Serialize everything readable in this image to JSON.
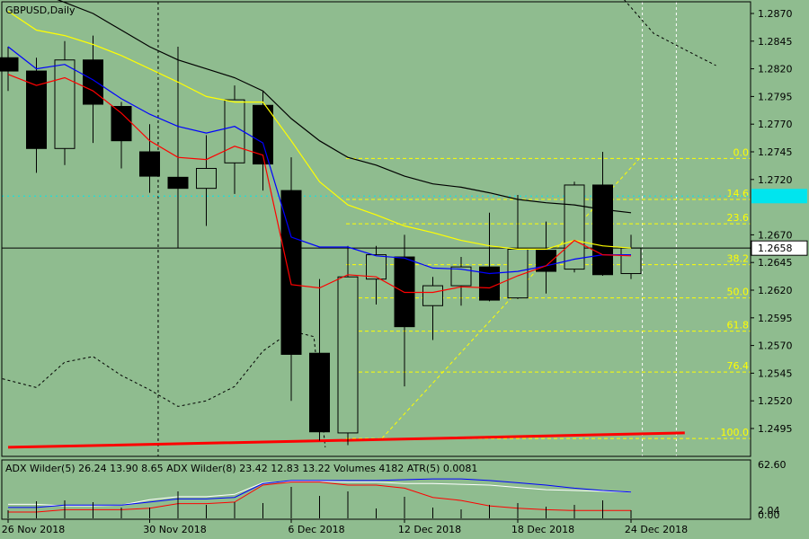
{
  "colors": {
    "background": "#8fbc8f",
    "axis": "#000000",
    "fib": "#ffff00",
    "ma_black": "#000000",
    "ma_yellow": "#ffff00",
    "ma_blue": "#0000ff",
    "ma_red": "#ff0000",
    "price_badge": "#ffffff",
    "cyan_badge": "#00e5ee"
  },
  "chart_data": [
    {
      "type": "candlestick",
      "title": "GBPUSD,Daily",
      "ylim": [
        1.2475,
        1.2885
      ],
      "y_ticks": [
        "1.2870",
        "1.2845",
        "1.2820",
        "1.2795",
        "1.2770",
        "1.2745",
        "1.2720",
        "1.2670",
        "1.2645",
        "1.2620",
        "1.2595",
        "1.2570",
        "1.2545",
        "1.2520",
        "1.2495"
      ],
      "x_labels": [
        {
          "i": 0,
          "label": "26 Nov 2018"
        },
        {
          "i": 5,
          "label": "30 Nov 2018"
        },
        {
          "i": 10,
          "label": "6 Dec 2018"
        },
        {
          "i": 14,
          "label": "12 Dec 2018"
        },
        {
          "i": 18,
          "label": "18 Dec 2018"
        },
        {
          "i": 22,
          "label": "24 Dec 2018"
        }
      ],
      "current_price": "1.2658",
      "cyan_level": 1.2705,
      "candles": [
        {
          "o": 1.283,
          "h": 1.284,
          "l": 1.28,
          "c": 1.2818
        },
        {
          "o": 1.2818,
          "h": 1.283,
          "l": 1.2726,
          "c": 1.2748
        },
        {
          "o": 1.2748,
          "h": 1.2845,
          "l": 1.2733,
          "c": 1.2828
        },
        {
          "o": 1.2828,
          "h": 1.285,
          "l": 1.2753,
          "c": 1.2788
        },
        {
          "o": 1.2786,
          "h": 1.279,
          "l": 1.273,
          "c": 1.2755
        },
        {
          "o": 1.2745,
          "h": 1.277,
          "l": 1.2708,
          "c": 1.2723
        },
        {
          "o": 1.2722,
          "h": 1.284,
          "l": 1.2658,
          "c": 1.2712
        },
        {
          "o": 1.2712,
          "h": 1.276,
          "l": 1.2678,
          "c": 1.273
        },
        {
          "o": 1.2735,
          "h": 1.2805,
          "l": 1.2707,
          "c": 1.2792
        },
        {
          "o": 1.2787,
          "h": 1.28,
          "l": 1.271,
          "c": 1.2734
        },
        {
          "o": 1.271,
          "h": 1.274,
          "l": 1.252,
          "c": 1.2562
        },
        {
          "o": 1.2563,
          "h": 1.263,
          "l": 1.2484,
          "c": 1.2492
        },
        {
          "o": 1.2491,
          "h": 1.266,
          "l": 1.248,
          "c": 1.2632
        },
        {
          "o": 1.263,
          "h": 1.266,
          "l": 1.2607,
          "c": 1.2652
        },
        {
          "o": 1.265,
          "h": 1.267,
          "l": 1.2533,
          "c": 1.2587
        },
        {
          "o": 1.2606,
          "h": 1.2632,
          "l": 1.2575,
          "c": 1.2624
        },
        {
          "o": 1.2624,
          "h": 1.265,
          "l": 1.2606,
          "c": 1.2641
        },
        {
          "o": 1.2641,
          "h": 1.269,
          "l": 1.261,
          "c": 1.2611
        },
        {
          "o": 1.2613,
          "h": 1.2706,
          "l": 1.2612,
          "c": 1.2657
        },
        {
          "o": 1.2656,
          "h": 1.2682,
          "l": 1.2617,
          "c": 1.2637
        },
        {
          "o": 1.2639,
          "h": 1.2718,
          "l": 1.2636,
          "c": 1.2715
        },
        {
          "o": 1.2715,
          "h": 1.2745,
          "l": 1.2633,
          "c": 1.2634
        },
        {
          "o": 1.2635,
          "h": 1.267,
          "l": 1.263,
          "c": 1.2658
        }
      ],
      "moving_averages": [
        {
          "color": "black",
          "values": [
            1.29,
            1.289,
            1.288,
            1.287,
            1.2855,
            1.284,
            1.2828,
            1.282,
            1.2812,
            1.28,
            1.2775,
            1.2755,
            1.274,
            1.2733,
            1.2723,
            1.2716,
            1.2713,
            1.2708,
            1.2702,
            1.2699,
            1.2697,
            1.2693,
            1.269
          ]
        },
        {
          "color": "yellow",
          "values": [
            1.2872,
            1.2855,
            1.285,
            1.2842,
            1.2832,
            1.282,
            1.2808,
            1.2795,
            1.279,
            1.279,
            1.2755,
            1.2718,
            1.2697,
            1.2688,
            1.2678,
            1.2672,
            1.2665,
            1.266,
            1.2657,
            1.2657,
            1.2665,
            1.266,
            1.2658
          ]
        },
        {
          "color": "blue",
          "values": [
            1.284,
            1.282,
            1.2824,
            1.281,
            1.2793,
            1.2779,
            1.2768,
            1.2762,
            1.2768,
            1.2753,
            1.2668,
            1.2659,
            1.2659,
            1.2651,
            1.2649,
            1.264,
            1.2639,
            1.2635,
            1.2637,
            1.2642,
            1.2648,
            1.2652,
            1.2652
          ]
        },
        {
          "color": "red",
          "values": [
            1.2815,
            1.2805,
            1.2812,
            1.28,
            1.278,
            1.2755,
            1.274,
            1.2738,
            1.275,
            1.2742,
            1.2625,
            1.2622,
            1.2634,
            1.2632,
            1.2618,
            1.2618,
            1.2623,
            1.2622,
            1.2633,
            1.2642,
            1.2665,
            1.2652,
            1.2651
          ]
        }
      ],
      "dotted_black_upper": [
        {
          "i": 21.5,
          "v": 1.289
        },
        {
          "i": 22.8,
          "v": 1.2852
        },
        {
          "i": 24,
          "v": 1.2836
        },
        {
          "i": 25,
          "v": 1.2823
        }
      ],
      "dotted_black_lower": [
        {
          "i": -0.2,
          "v": 1.254
        },
        {
          "i": 1,
          "v": 1.2532
        },
        {
          "i": 2,
          "v": 1.2555
        },
        {
          "i": 3,
          "v": 1.256
        },
        {
          "i": 4,
          "v": 1.2543
        },
        {
          "i": 5,
          "v": 1.253
        },
        {
          "i": 6,
          "v": 1.2515
        },
        {
          "i": 7,
          "v": 1.252
        },
        {
          "i": 8,
          "v": 1.2533
        },
        {
          "i": 9,
          "v": 1.2565
        },
        {
          "i": 10,
          "v": 1.2583
        },
        {
          "i": 10.8,
          "v": 1.2578
        },
        {
          "i": 11.2,
          "v": 1.2478
        }
      ],
      "vertical_dotted": [
        {
          "i": 5.3,
          "color": "black"
        },
        {
          "i": 22.4,
          "color": "white"
        },
        {
          "i": 23.6,
          "color": "white"
        }
      ],
      "fib_line": {
        "i0": 13.2,
        "v0": 1.2486,
        "i1": 22.3,
        "v1": 1.2739
      },
      "fib_levels": [
        {
          "label": "0.0",
          "value": 1.2739
        },
        {
          "label": "14.6",
          "value": 1.2702
        },
        {
          "label": "23.6",
          "value": 1.268
        },
        {
          "label": "38.2",
          "value": 1.2643
        },
        {
          "label": "50.0",
          "value": 1.2613
        },
        {
          "label": "61.8",
          "value": 1.2583
        },
        {
          "label": "76.4",
          "value": 1.2546
        },
        {
          "label": "100.0",
          "value": 1.2486
        }
      ],
      "red_trendline": [
        {
          "i": 0,
          "v": 1.2478
        },
        {
          "i": 13.2,
          "v": 1.2485
        },
        {
          "i": 23.9,
          "v": 1.2491
        }
      ]
    },
    {
      "type": "line",
      "title": "ADX Wilder(5) 26.24 13.90 8.65 ADX Wilder(8) 23.42 12.83 13.22 Volumes 4182 ATR(5) 0.0081",
      "ylim": [
        0,
        70
      ],
      "y_ticks": [
        "62.60",
        "2.04",
        "0.00"
      ],
      "series": [
        {
          "color": "white",
          "values": [
            17,
            17,
            15,
            15,
            16,
            23,
            27,
            27,
            30,
            45,
            47,
            47,
            46,
            46,
            44,
            44,
            43,
            42,
            39,
            36,
            35,
            34,
            33
          ]
        },
        {
          "color": "blue",
          "values": [
            13,
            13,
            16,
            16,
            16,
            20,
            24,
            24,
            26,
            44,
            48,
            48,
            48,
            48,
            49,
            50,
            50,
            48,
            45,
            42,
            38,
            35,
            33
          ]
        },
        {
          "color": "red",
          "values": [
            7,
            7,
            10,
            10,
            10,
            12,
            18,
            18,
            20,
            42,
            46,
            46,
            42,
            42,
            38,
            26,
            22,
            15,
            12,
            10,
            9,
            9,
            9
          ]
        }
      ]
    }
  ]
}
